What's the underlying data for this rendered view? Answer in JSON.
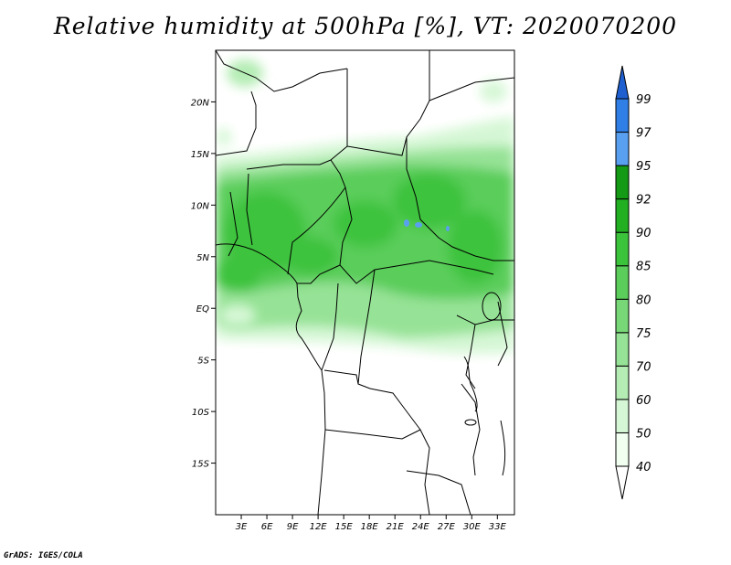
{
  "title": "Relative humidity at 500hPa [%], VT: 2020070200",
  "credit": "GrADS: IGES/COLA",
  "map": {
    "lon_range": [
      0,
      35
    ],
    "lat_range": [
      -20,
      25
    ],
    "lat_ticks": [
      {
        "value": 20,
        "label": "20N"
      },
      {
        "value": 15,
        "label": "15N"
      },
      {
        "value": 10,
        "label": "10N"
      },
      {
        "value": 5,
        "label": "5N"
      },
      {
        "value": 0,
        "label": "EQ"
      },
      {
        "value": -5,
        "label": "5S"
      },
      {
        "value": -10,
        "label": "10S"
      },
      {
        "value": -15,
        "label": "15S"
      }
    ],
    "lon_ticks": [
      {
        "value": 3,
        "label": "3E"
      },
      {
        "value": 6,
        "label": "6E"
      },
      {
        "value": 9,
        "label": "9E"
      },
      {
        "value": 12,
        "label": "12E"
      },
      {
        "value": 15,
        "label": "15E"
      },
      {
        "value": 18,
        "label": "18E"
      },
      {
        "value": 21,
        "label": "21E"
      },
      {
        "value": 24,
        "label": "24E"
      },
      {
        "value": 27,
        "label": "27E"
      },
      {
        "value": 30,
        "label": "30E"
      },
      {
        "value": 33,
        "label": "33E"
      }
    ]
  },
  "colorbar": {
    "levels": [
      "40",
      "50",
      "60",
      "70",
      "75",
      "80",
      "85",
      "90",
      "92",
      "95",
      "97",
      "99"
    ],
    "colors": [
      "#f0fff0",
      "#d6f7d6",
      "#b4ecb4",
      "#96e296",
      "#78d878",
      "#5acd5a",
      "#3cc33c",
      "#22b022",
      "#159a15",
      "#5aa0f0",
      "#2f7fe6",
      "#1f5fd0"
    ]
  }
}
